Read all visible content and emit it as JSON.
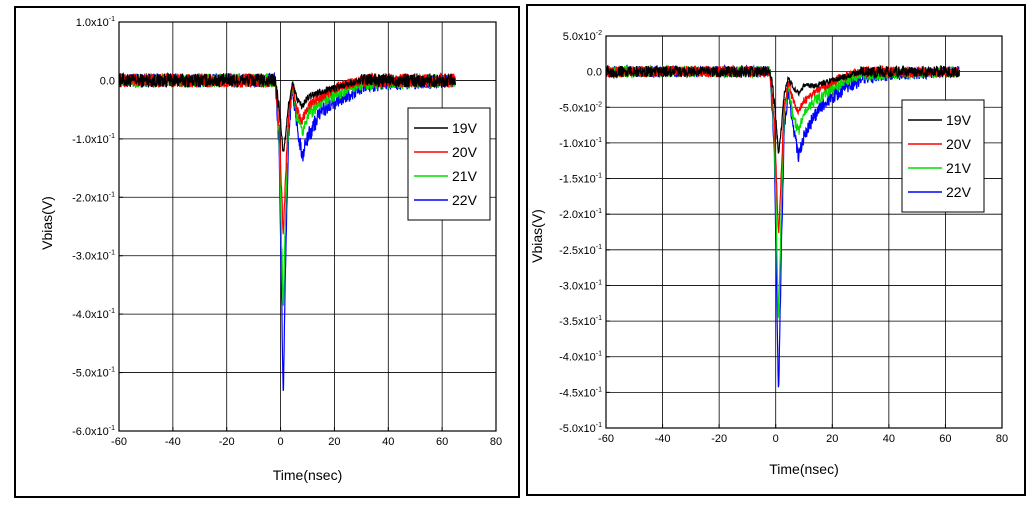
{
  "chart_data": [
    {
      "type": "line",
      "title": "",
      "xlabel": "Time(nsec)",
      "ylabel": "Vbias(V)",
      "xlim": [
        -60,
        80
      ],
      "ylim": [
        -0.6,
        0.1
      ],
      "xticks": [
        -60,
        -40,
        -20,
        0,
        20,
        40,
        60,
        80
      ],
      "xtick_labels": [
        "-60",
        "-40",
        "-20",
        "0",
        "20",
        "40",
        "60",
        "80"
      ],
      "yticks": [
        0.1,
        0.0,
        -0.1,
        -0.2,
        -0.3,
        -0.4,
        -0.5,
        -0.6
      ],
      "ytick_labels": [
        {
          "mant": "1.0x10",
          "exp": "-1"
        },
        {
          "mant": "0.0",
          "exp": ""
        },
        {
          "mant": "-1.0x10",
          "exp": "-1"
        },
        {
          "mant": "-2.0x10",
          "exp": "-1"
        },
        {
          "mant": "-3.0x10",
          "exp": "-1"
        },
        {
          "mant": "-4.0x10",
          "exp": "-1"
        },
        {
          "mant": "-5.0x10",
          "exp": "-1"
        },
        {
          "mant": "-6.0x10",
          "exp": "-1"
        }
      ],
      "grid": true,
      "legend_position": "right",
      "noise_amplitude": 0.012,
      "series": [
        {
          "name": "19V",
          "color": "#000000",
          "points": [
            [
              -60,
              0.0
            ],
            [
              -2,
              0.0
            ],
            [
              -0.5,
              -0.05
            ],
            [
              1,
              -0.125
            ],
            [
              2,
              -0.09
            ],
            [
              3,
              -0.04
            ],
            [
              4.5,
              -0.005
            ],
            [
              6,
              -0.03
            ],
            [
              8,
              -0.045
            ],
            [
              10,
              -0.03
            ],
            [
              14,
              -0.02
            ],
            [
              18,
              -0.015
            ],
            [
              22,
              -0.01
            ],
            [
              26,
              -0.005
            ],
            [
              30,
              0.0
            ],
            [
              65,
              0.0
            ]
          ]
        },
        {
          "name": "20V",
          "color": "#ff0000",
          "points": [
            [
              -60,
              0.0
            ],
            [
              -2,
              0.0
            ],
            [
              -0.5,
              -0.08
            ],
            [
              1,
              -0.265
            ],
            [
              2,
              -0.15
            ],
            [
              3,
              -0.06
            ],
            [
              4.5,
              -0.01
            ],
            [
              6,
              -0.05
            ],
            [
              8,
              -0.07
            ],
            [
              10,
              -0.045
            ],
            [
              14,
              -0.03
            ],
            [
              18,
              -0.02
            ],
            [
              22,
              -0.01
            ],
            [
              26,
              -0.005
            ],
            [
              30,
              0.0
            ],
            [
              65,
              0.0
            ]
          ]
        },
        {
          "name": "21V",
          "color": "#00dd00",
          "points": [
            [
              -60,
              0.0
            ],
            [
              -2,
              0.0
            ],
            [
              -0.5,
              -0.1
            ],
            [
              1,
              -0.4
            ],
            [
              2,
              -0.2
            ],
            [
              3,
              -0.07
            ],
            [
              4.5,
              -0.01
            ],
            [
              6,
              -0.06
            ],
            [
              8,
              -0.09
            ],
            [
              10,
              -0.06
            ],
            [
              14,
              -0.04
            ],
            [
              18,
              -0.03
            ],
            [
              22,
              -0.02
            ],
            [
              26,
              -0.01
            ],
            [
              30,
              -0.005
            ],
            [
              65,
              0.0
            ]
          ]
        },
        {
          "name": "22V",
          "color": "#0000ff",
          "points": [
            [
              -60,
              0.0
            ],
            [
              -2,
              0.0
            ],
            [
              -0.5,
              -0.12
            ],
            [
              1,
              -0.54
            ],
            [
              2,
              -0.28
            ],
            [
              3,
              -0.09
            ],
            [
              4.5,
              -0.015
            ],
            [
              6,
              -0.07
            ],
            [
              8,
              -0.13
            ],
            [
              10,
              -0.1
            ],
            [
              14,
              -0.06
            ],
            [
              18,
              -0.04
            ],
            [
              22,
              -0.03
            ],
            [
              26,
              -0.02
            ],
            [
              30,
              -0.01
            ],
            [
              40,
              -0.005
            ],
            [
              65,
              0.0
            ]
          ]
        }
      ]
    },
    {
      "type": "line",
      "title": "",
      "xlabel": "Time(nsec)",
      "ylabel": "Vbias(V)",
      "xlim": [
        -60,
        80
      ],
      "ylim": [
        -0.5,
        0.05
      ],
      "xticks": [
        -60,
        -40,
        -20,
        0,
        20,
        40,
        60,
        80
      ],
      "xtick_labels": [
        "-60",
        "-40",
        "-20",
        "0",
        "20",
        "40",
        "60",
        "80"
      ],
      "yticks": [
        0.05,
        0.0,
        -0.05,
        -0.1,
        -0.15,
        -0.2,
        -0.25,
        -0.3,
        -0.35,
        -0.4,
        -0.45,
        -0.5
      ],
      "ytick_labels": [
        {
          "mant": "5.0x10",
          "exp": "-2"
        },
        {
          "mant": "0.0",
          "exp": ""
        },
        {
          "mant": "-5.0x10",
          "exp": "-2"
        },
        {
          "mant": "-1.0x10",
          "exp": "-1"
        },
        {
          "mant": "-1.5x10",
          "exp": "-1"
        },
        {
          "mant": "-2.0x10",
          "exp": "-1"
        },
        {
          "mant": "-2.5x10",
          "exp": "-1"
        },
        {
          "mant": "-3.0x10",
          "exp": "-1"
        },
        {
          "mant": "-3.5x10",
          "exp": "-1"
        },
        {
          "mant": "-4.0x10",
          "exp": "-1"
        },
        {
          "mant": "-4.5x10",
          "exp": "-1"
        },
        {
          "mant": "-5.0x10",
          "exp": "-1"
        }
      ],
      "grid": true,
      "legend_position": "right",
      "noise_amplitude": 0.008,
      "series": [
        {
          "name": "19V",
          "color": "#000000",
          "points": [
            [
              -60,
              0.0
            ],
            [
              -2,
              0.0
            ],
            [
              -0.5,
              -0.04
            ],
            [
              1,
              -0.115
            ],
            [
              2,
              -0.08
            ],
            [
              3,
              -0.03
            ],
            [
              4.5,
              -0.01
            ],
            [
              6,
              -0.02
            ],
            [
              8,
              -0.03
            ],
            [
              10,
              -0.02
            ],
            [
              14,
              -0.02
            ],
            [
              18,
              -0.015
            ],
            [
              22,
              -0.01
            ],
            [
              26,
              -0.005
            ],
            [
              30,
              0.0
            ],
            [
              65,
              0.0
            ]
          ]
        },
        {
          "name": "20V",
          "color": "#ff0000",
          "points": [
            [
              -60,
              0.0
            ],
            [
              -2,
              0.0
            ],
            [
              -0.5,
              -0.07
            ],
            [
              1,
              -0.23
            ],
            [
              2,
              -0.14
            ],
            [
              3,
              -0.05
            ],
            [
              4.5,
              -0.015
            ],
            [
              6,
              -0.04
            ],
            [
              8,
              -0.055
            ],
            [
              10,
              -0.04
            ],
            [
              14,
              -0.03
            ],
            [
              18,
              -0.02
            ],
            [
              22,
              -0.01
            ],
            [
              26,
              -0.005
            ],
            [
              30,
              0.0
            ],
            [
              65,
              0.0
            ]
          ]
        },
        {
          "name": "21V",
          "color": "#00dd00",
          "points": [
            [
              -60,
              0.0
            ],
            [
              -2,
              0.0
            ],
            [
              -0.5,
              -0.09
            ],
            [
              1,
              -0.35
            ],
            [
              2,
              -0.19
            ],
            [
              3,
              -0.06
            ],
            [
              4.5,
              -0.02
            ],
            [
              6,
              -0.06
            ],
            [
              8,
              -0.085
            ],
            [
              10,
              -0.06
            ],
            [
              14,
              -0.04
            ],
            [
              18,
              -0.03
            ],
            [
              22,
              -0.02
            ],
            [
              26,
              -0.01
            ],
            [
              30,
              -0.005
            ],
            [
              65,
              0.0
            ]
          ]
        },
        {
          "name": "22V",
          "color": "#0000ff",
          "points": [
            [
              -60,
              0.0
            ],
            [
              -2,
              0.0
            ],
            [
              -0.5,
              -0.11
            ],
            [
              1,
              -0.46
            ],
            [
              2,
              -0.25
            ],
            [
              3,
              -0.08
            ],
            [
              4.5,
              -0.025
            ],
            [
              6,
              -0.07
            ],
            [
              8,
              -0.12
            ],
            [
              10,
              -0.09
            ],
            [
              14,
              -0.06
            ],
            [
              18,
              -0.04
            ],
            [
              22,
              -0.03
            ],
            [
              26,
              -0.02
            ],
            [
              30,
              -0.01
            ],
            [
              40,
              -0.005
            ],
            [
              65,
              0.0
            ]
          ]
        }
      ]
    }
  ]
}
